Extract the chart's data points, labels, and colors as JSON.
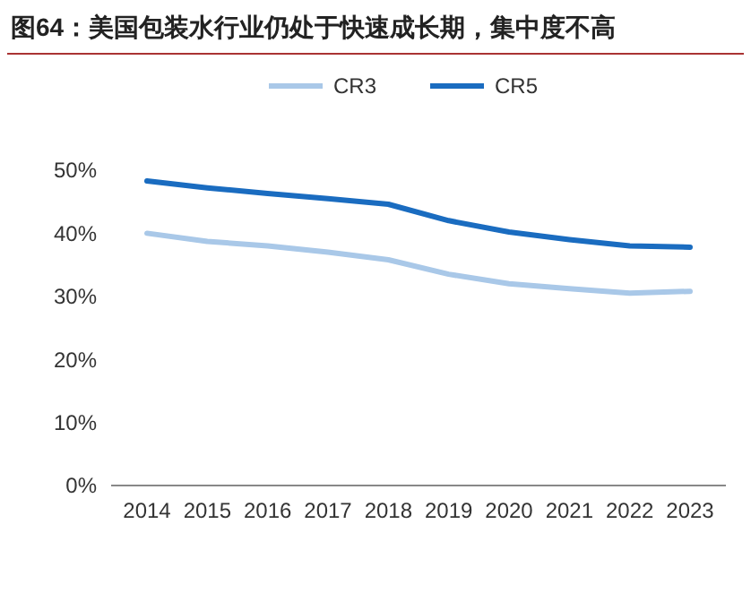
{
  "chart_data": {
    "type": "line",
    "title": "图64：美国包装水行业仍处于快速成长期，集中度不高",
    "categories": [
      "2014",
      "2015",
      "2016",
      "2017",
      "2018",
      "2019",
      "2020",
      "2021",
      "2022",
      "2023"
    ],
    "series": [
      {
        "name": "CR3",
        "color": "#a9c8e8",
        "values": [
          40,
          38.7,
          38,
          37,
          35.8,
          33.5,
          32,
          31.2,
          30.5,
          30.8
        ]
      },
      {
        "name": "CR5",
        "color": "#1a6cc0",
        "values": [
          48.3,
          47.2,
          46.3,
          45.5,
          44.6,
          42,
          40.2,
          39,
          38,
          37.8
        ]
      }
    ],
    "ylim": [
      0,
      50
    ],
    "yticks": [
      {
        "value": 0,
        "label": "0%"
      },
      {
        "value": 10,
        "label": "10%"
      },
      {
        "value": 20,
        "label": "20%"
      },
      {
        "value": 30,
        "label": "30%"
      },
      {
        "value": 40,
        "label": "40%"
      },
      {
        "value": 50,
        "label": "50%"
      }
    ],
    "grid": false,
    "legend": "top",
    "marker": "none",
    "line_style": "solid"
  }
}
